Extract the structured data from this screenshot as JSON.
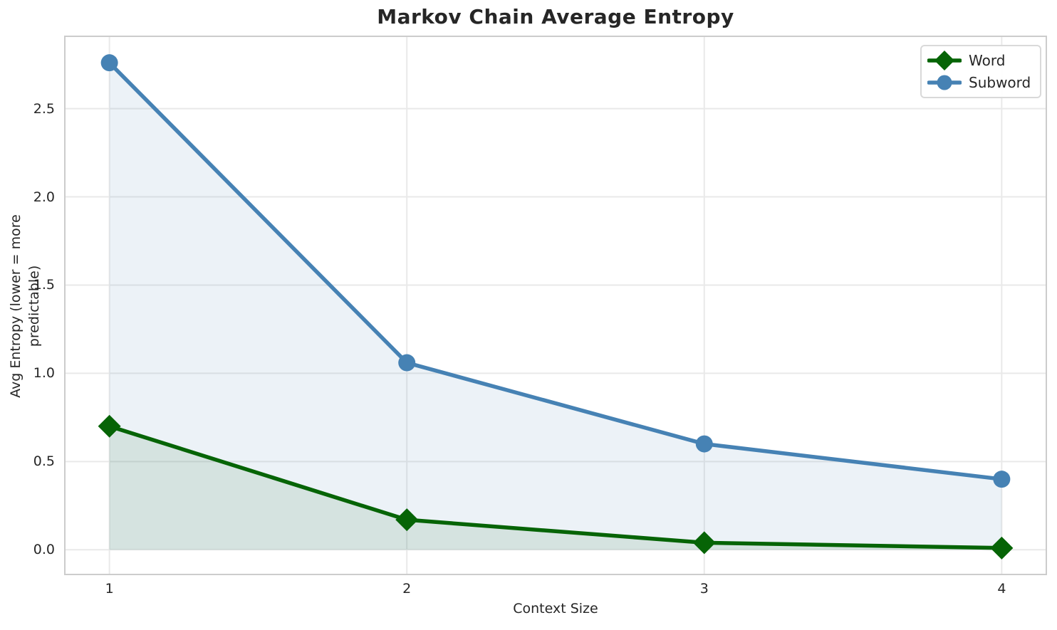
{
  "chart_data": {
    "type": "line",
    "title": "Markov Chain Average Entropy",
    "xlabel": "Context Size",
    "ylabel": "Avg Entropy (lower = more predictable)",
    "x": [
      1,
      2,
      3,
      4
    ],
    "series": [
      {
        "name": "Word",
        "values": [
          0.7,
          0.17,
          0.04,
          0.01
        ],
        "color": "#066406",
        "marker": "diamond"
      },
      {
        "name": "Subword",
        "values": [
          2.76,
          1.06,
          0.6,
          0.4
        ],
        "color": "#4682b4",
        "marker": "circle"
      }
    ],
    "area_fill_to_zero": true,
    "fill_alpha": 0.1,
    "xlim": [
      0.85,
      4.15
    ],
    "ylim": [
      -0.14,
      2.91
    ],
    "xticks": {
      "values": [
        1,
        2,
        3,
        4
      ],
      "labels": [
        "1",
        "2",
        "3",
        "4"
      ]
    },
    "yticks": {
      "values": [
        0,
        0.5,
        1,
        1.5,
        2,
        2.5
      ],
      "labels": [
        "0.0",
        "0.5",
        "1.0",
        "1.5",
        "2.0",
        "2.5"
      ]
    },
    "grid": true,
    "legend": {
      "position": "upper right",
      "entries": [
        "Word",
        "Subword"
      ]
    }
  },
  "colors": {
    "background": "#ffffff",
    "text": "#262626",
    "grid": "#e9e9e9",
    "spine": "#cccccc",
    "legend_border": "#d9d9d9",
    "word": "#066406",
    "subword": "#4682b4"
  }
}
